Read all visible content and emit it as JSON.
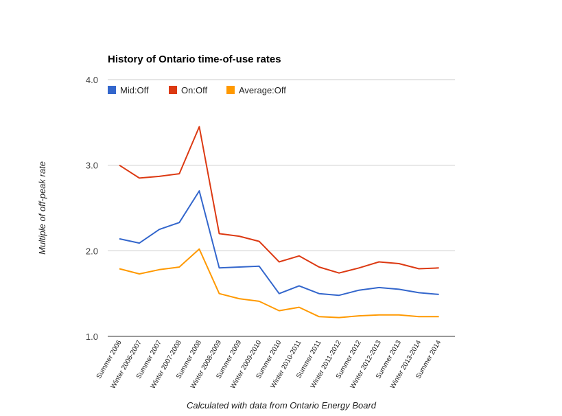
{
  "chart_data": {
    "type": "line",
    "title": "History of Ontario time-of-use rates",
    "xlabel": "Calculated with data from Ontario Energy Board",
    "ylabel": "Multiple of off-peak rate",
    "ylim": [
      1.0,
      4.0
    ],
    "yticks": [
      "1.0",
      "2.0",
      "3.0",
      "4.0"
    ],
    "grid": true,
    "legend_position": "top-left",
    "categories": [
      "Summer 2006",
      "Winter 2006-2007",
      "Summer 2007",
      "Winter 2007-2008",
      "Summer 2008",
      "Winter 2008-2009",
      "Summer 2009",
      "Winter 2009-2010",
      "Summer 2010",
      "Winter 2010-2011",
      "Summer 2011",
      "Winter 2011-2012",
      "Summer 2012",
      "Winter 2012-2013",
      "Summer 2013",
      "Winter 2013-2014",
      "Summer 2014"
    ],
    "series": [
      {
        "name": "Mid:Off",
        "color": "#3366cc",
        "values": [
          2.14,
          2.09,
          2.25,
          2.33,
          2.7,
          1.8,
          1.81,
          1.82,
          1.5,
          1.59,
          1.5,
          1.48,
          1.54,
          1.57,
          1.55,
          1.51,
          1.49
        ]
      },
      {
        "name": "On:Off",
        "color": "#dc3912",
        "values": [
          3.0,
          2.85,
          2.87,
          2.9,
          3.45,
          2.2,
          2.17,
          2.11,
          1.87,
          1.94,
          1.81,
          1.74,
          1.8,
          1.87,
          1.85,
          1.79,
          1.8
        ]
      },
      {
        "name": "Average:Off",
        "color": "#ff9900",
        "values": [
          1.79,
          1.73,
          1.78,
          1.81,
          2.02,
          1.5,
          1.44,
          1.41,
          1.3,
          1.34,
          1.23,
          1.22,
          1.24,
          1.25,
          1.25,
          1.23,
          1.23
        ]
      }
    ]
  }
}
